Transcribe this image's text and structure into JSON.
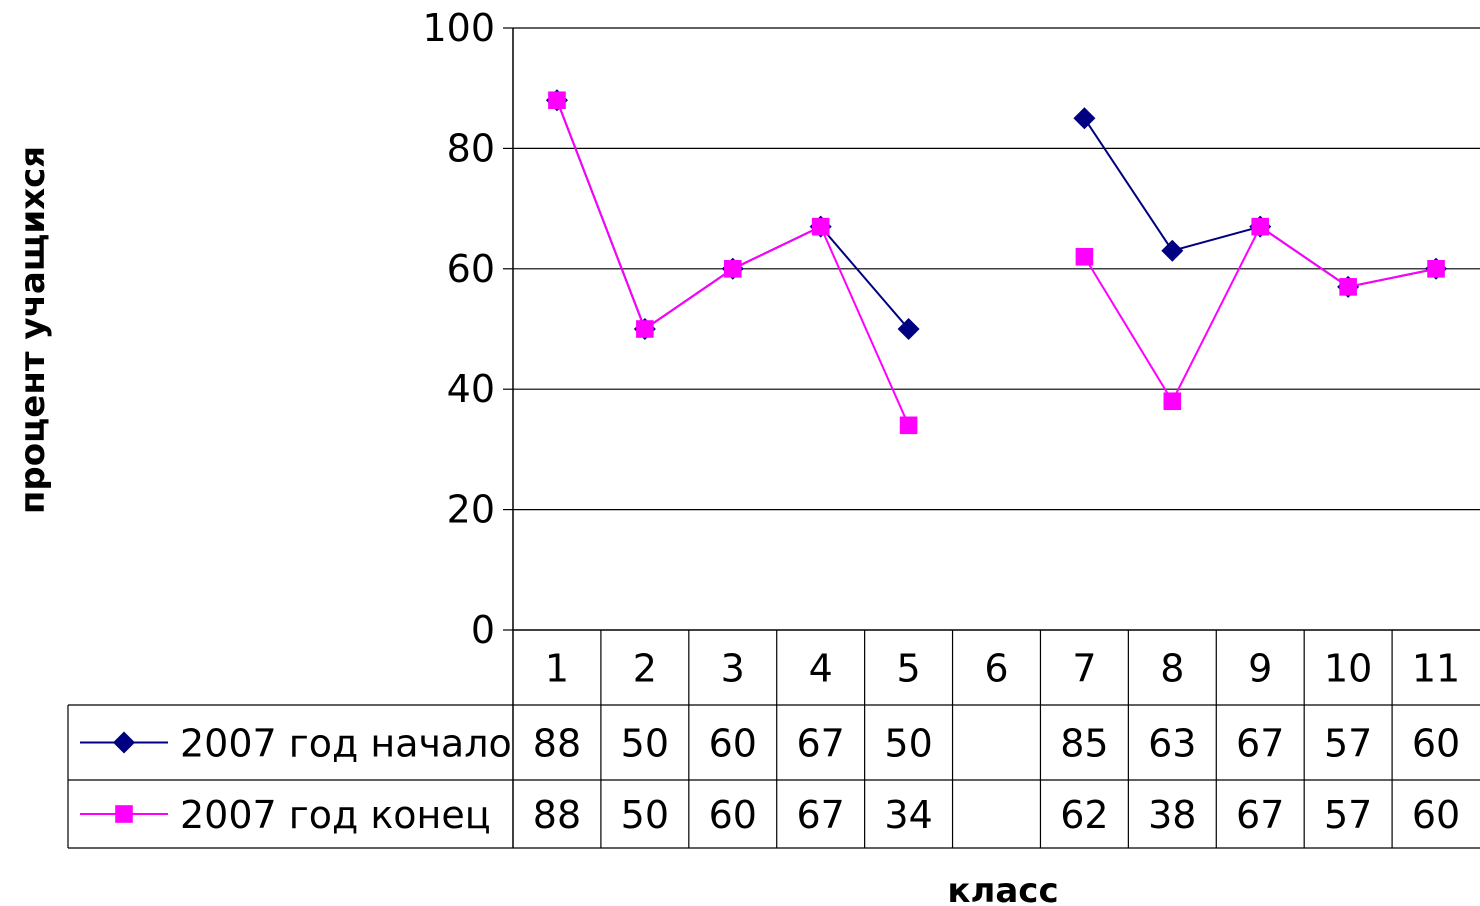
{
  "chart_data": {
    "type": "line",
    "title": "",
    "xlabel": "класс",
    "ylabel": "процент учащихся",
    "categories": [
      "1",
      "2",
      "3",
      "4",
      "5",
      "6",
      "7",
      "8",
      "9",
      "10",
      "11"
    ],
    "ylim": [
      0,
      100
    ],
    "yticks": [
      "0",
      "20",
      "40",
      "60",
      "80",
      "100"
    ],
    "grid": true,
    "legend_placement": "data-table-left",
    "series": [
      {
        "name": "2007 год начало",
        "color": "#000080",
        "marker": "diamond",
        "values": [
          88,
          50,
          60,
          67,
          50,
          null,
          85,
          63,
          67,
          57,
          60
        ]
      },
      {
        "name": "2007 год конец",
        "color": "#FF00FF",
        "marker": "square",
        "values": [
          88,
          50,
          60,
          67,
          34,
          null,
          62,
          38,
          67,
          57,
          60
        ]
      }
    ]
  }
}
